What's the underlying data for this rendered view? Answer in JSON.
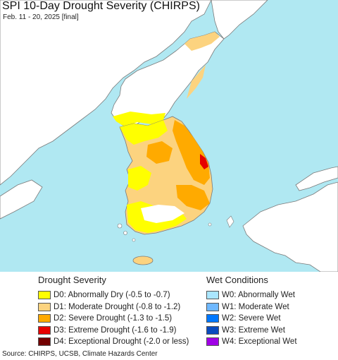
{
  "header": {
    "title": "SPI 10-Day Drought Severity (CHIRPS)",
    "subtitle": "Feb. 11 - 20, 2025 [final]"
  },
  "map": {
    "region": "Korean Peninsula",
    "colors": {
      "water": "#b0e8f2",
      "land_no_data": "#ffffff",
      "border": "#6e6e6e"
    }
  },
  "legend": {
    "drought": {
      "heading": "Drought Severity",
      "items": [
        {
          "label": "D0: Abnormally Dry (-0.5 to -0.7)",
          "color": "#ffff00"
        },
        {
          "label": "D1: Moderate Drought (-0.8 to -1.2)",
          "color": "#fcd37f"
        },
        {
          "label": "D2: Severe Drought (-1.3 to -1.5)",
          "color": "#ffaa00"
        },
        {
          "label": "D3: Extreme Drought (-1.6 to -1.9)",
          "color": "#e60000"
        },
        {
          "label": "D4: Exceptional Drought (-2.0 or less)",
          "color": "#730000"
        }
      ]
    },
    "wet": {
      "heading": "Wet Conditions",
      "items": [
        {
          "label": "W0: Abnormally Wet",
          "color": "#aae6ff"
        },
        {
          "label": "W1: Moderate Wet",
          "color": "#6fb8ff"
        },
        {
          "label": "W2: Severe Wet",
          "color": "#0078ff"
        },
        {
          "label": "W3: Extreme Wet",
          "color": "#0a4bbe"
        },
        {
          "label": "W4: Exceptional Wet",
          "color": "#a000e6"
        }
      ]
    }
  },
  "footer": {
    "source": "Source: CHIRPS, UCSB, Climate Hazards Center"
  }
}
